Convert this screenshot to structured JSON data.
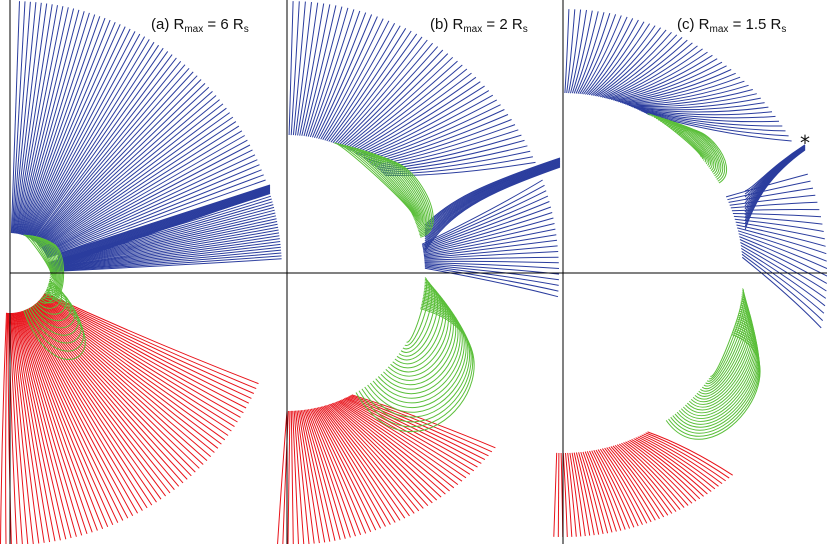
{
  "figure": {
    "panels": [
      {
        "id": "a",
        "label_prefix": "(a) R",
        "label_sub": "max",
        "label_suffix": " = 6 R",
        "label_sub2": "s"
      },
      {
        "id": "b",
        "label_prefix": "(b) R",
        "label_sub": "max",
        "label_suffix": " = 2 R",
        "label_sub2": "s"
      },
      {
        "id": "c",
        "label_prefix": "(c) R",
        "label_sub": "max",
        "label_suffix": " = 1.5 R",
        "label_sub2": "s",
        "marker": "*"
      }
    ],
    "colors": {
      "open_north": "#2b3d9e",
      "closed": "#5bbf3a",
      "open_south": "#e8131a",
      "axes": "#000000"
    }
  }
}
